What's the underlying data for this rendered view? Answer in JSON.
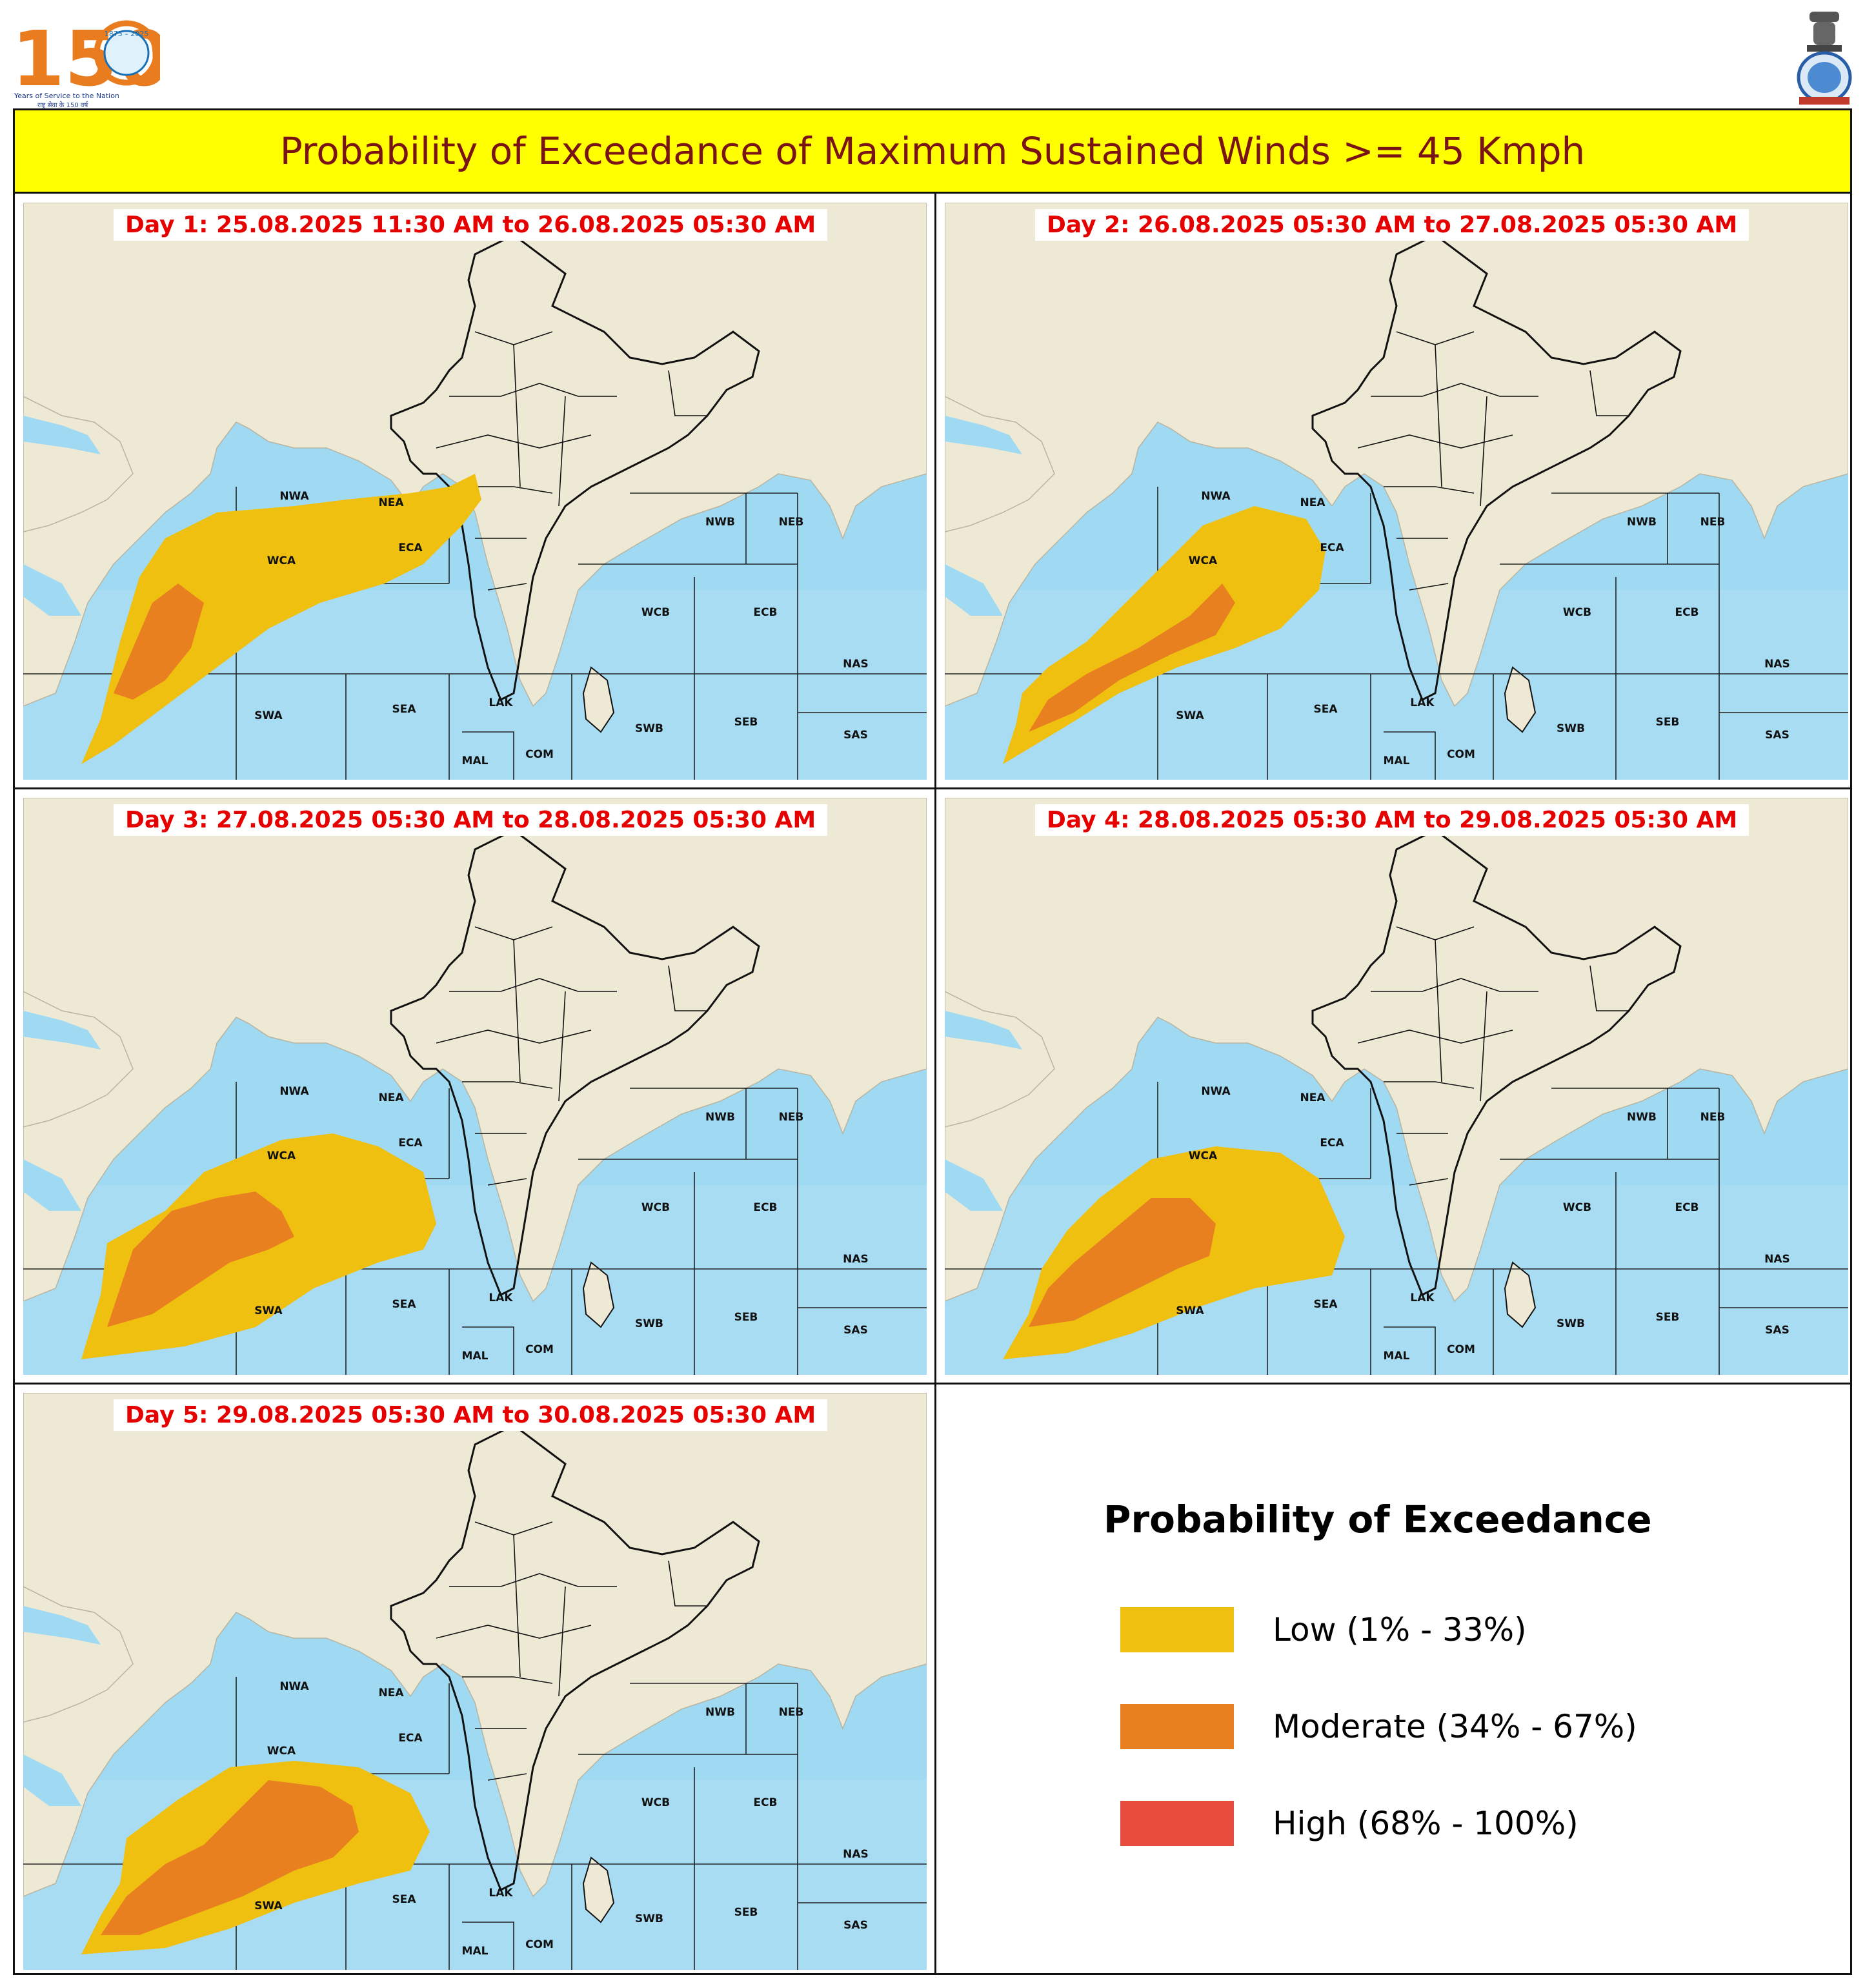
{
  "header": {
    "title": "Probability of Exceedance of Maximum Sustained Winds >= 45 Kmph",
    "logo_150": {
      "number": "150",
      "years": "1875 – 2025",
      "tagline": "Years of Service to the Nation",
      "hindi": "राष्ट्र सेवा के 150 वर्ष"
    },
    "emblem": "ashoka-emblem-icon"
  },
  "map_labels": {
    "regions": [
      "NWA",
      "NEA",
      "WCA",
      "ECA",
      "SWA",
      "SEA",
      "LAK",
      "MAL",
      "COM",
      "SWB",
      "SEB",
      "WCB",
      "ECB",
      "NWB",
      "NEB",
      "NAS",
      "SAS"
    ]
  },
  "panels": [
    {
      "day_title": "Day 1: 25.08.2025 11:30 AM to 26.08.2025 05:30 AM"
    },
    {
      "day_title": "Day 2: 26.08.2025 05:30 AM to 27.08.2025 05:30 AM"
    },
    {
      "day_title": "Day 3: 27.08.2025 05:30 AM to 28.08.2025 05:30 AM"
    },
    {
      "day_title": "Day 4: 28.08.2025 05:30 AM to 29.08.2025 05:30 AM"
    },
    {
      "day_title": "Day 5: 29.08.2025 05:30 AM to 30.08.2025 05:30 AM"
    }
  ],
  "legend": {
    "title": "Probability of Exceedance",
    "items": [
      {
        "label": "Low (1% - 33%)",
        "color": "#f0c010"
      },
      {
        "label": "Moderate (34% - 67%)",
        "color": "#e88020"
      },
      {
        "label": "High (68% - 100%)",
        "color": "#e84c3d"
      }
    ]
  },
  "colors": {
    "sea": "#9fd9f2",
    "land": "#ede9d5",
    "title_bg": "#ffff00",
    "title_text": "#7a1414",
    "day_title_text": "#e60000"
  }
}
